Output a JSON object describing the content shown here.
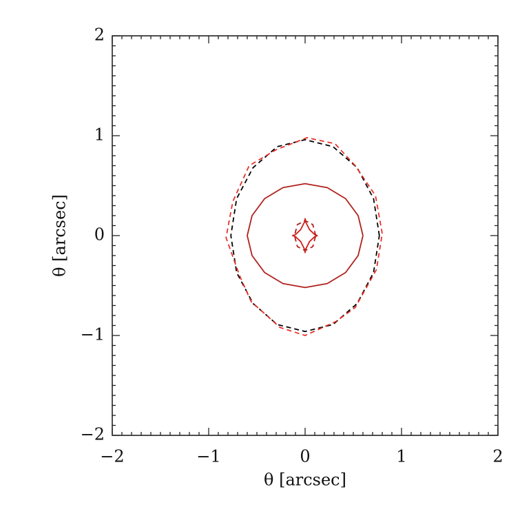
{
  "chart_data": {
    "type": "line",
    "xlabel": "θ [arcsec]",
    "ylabel": "θ [arcsec]",
    "xlim": [
      -2,
      2
    ],
    "ylim": [
      -2,
      2
    ],
    "xticks": [
      {
        "value": -2,
        "label": "−2"
      },
      {
        "value": -1,
        "label": "−1"
      },
      0,
      1,
      2
    ],
    "yticks": [
      {
        "value": -2,
        "label": "−2"
      },
      {
        "value": -1,
        "label": "−1"
      },
      0,
      1,
      2
    ],
    "minor_ticks_per_major": 10,
    "series": [
      {
        "color": "#000000",
        "dash": true,
        "x": [
          0.77,
          0.71,
          0.54,
          0.29,
          0,
          -0.29,
          -0.54,
          -0.71,
          -0.77,
          -0.71,
          -0.54,
          -0.29,
          0,
          0.29,
          0.54,
          0.71,
          0.77
        ],
        "values": [
          0,
          0.37,
          0.68,
          0.89,
          0.96,
          0.89,
          0.68,
          0.37,
          0,
          -0.37,
          -0.68,
          -0.89,
          -0.96,
          -0.89,
          -0.68,
          -0.37,
          0
        ]
      },
      {
        "color": "#e8302a",
        "dash": true,
        "x": [
          0.8,
          0.73,
          0.52,
          0.31,
          0.02,
          -0.3,
          -0.58,
          -0.75,
          -0.82,
          -0.68,
          -0.56,
          -0.26,
          0.0,
          0.32,
          0.52,
          0.74,
          0.8
        ],
        "values": [
          0.02,
          0.4,
          0.7,
          0.92,
          0.98,
          0.86,
          0.7,
          0.34,
          -0.02,
          -0.4,
          -0.66,
          -0.92,
          -1.0,
          -0.86,
          -0.72,
          -0.34,
          0.02
        ]
      },
      {
        "color": "#b0201c",
        "dash": false,
        "x": [
          0.6,
          0.55,
          0.42,
          0.23,
          0,
          -0.23,
          -0.42,
          -0.55,
          -0.6,
          -0.55,
          -0.42,
          -0.23,
          0,
          0.23,
          0.42,
          0.55,
          0.6
        ],
        "values": [
          0,
          0.2,
          0.37,
          0.48,
          0.52,
          0.48,
          0.37,
          0.2,
          0,
          -0.2,
          -0.37,
          -0.48,
          -0.52,
          -0.48,
          -0.37,
          -0.2,
          0
        ]
      },
      {
        "color": "#d0221c",
        "dash": false,
        "x": [
          0.13,
          0.1,
          0.046,
          0.007,
          0,
          -0.007,
          -0.046,
          -0.1,
          -0.13,
          -0.1,
          -0.046,
          -0.007,
          0,
          0.007,
          0.046,
          0.1,
          0.13
        ],
        "values": [
          0,
          0.01,
          0.06,
          0.134,
          0.17,
          0.134,
          0.06,
          0.01,
          0,
          -0.01,
          -0.06,
          -0.134,
          -0.17,
          -0.134,
          -0.06,
          -0.01,
          0
        ]
      },
      {
        "color": "#b0201c",
        "dash": true,
        "x": [
          0.11,
          0.08,
          0,
          -0.08,
          -0.11,
          -0.08,
          0,
          0.08,
          0.11
        ],
        "values": [
          0,
          0.11,
          0.15,
          0.11,
          0,
          -0.11,
          -0.15,
          -0.11,
          0
        ]
      }
    ]
  }
}
